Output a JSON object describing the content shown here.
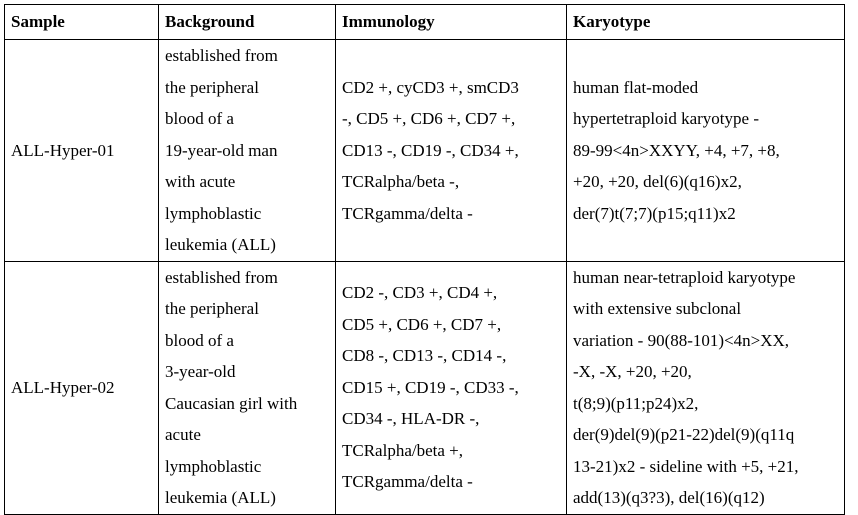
{
  "table": {
    "headers": [
      "Sample",
      "Background",
      "Immunology",
      "Karyotype"
    ],
    "rows": [
      {
        "sample": "ALL-Hyper-01",
        "background": [
          "established from",
          "the peripheral",
          "blood of a",
          "19-year-old man",
          "with acute",
          "lymphoblastic",
          "leukemia (ALL)"
        ],
        "immunology": [
          "CD2 +, cyCD3 +, smCD3",
          "-, CD5 +, CD6 +, CD7 +,",
          "CD13 -, CD19 -, CD34 +,",
          "TCRalpha/beta -,",
          "TCRgamma/delta -"
        ],
        "karyotype": [
          "human flat-moded",
          "hypertetraploid karyotype -",
          "89-99<4n>XXYY, +4, +7, +8,",
          "+20, +20, del(6)(q16)x2,",
          "der(7)t(7;7)(p15;q11)x2"
        ]
      },
      {
        "sample": "ALL-Hyper-02",
        "background": [
          "established from",
          "the peripheral",
          "blood of a",
          "3-year-old",
          "Caucasian girl with",
          "acute",
          "lymphoblastic",
          "leukemia (ALL)"
        ],
        "immunology": [
          "CD2 -, CD3 +, CD4 +,",
          "CD5 +, CD6 +, CD7 +,",
          "CD8 -, CD13 -, CD14 -,",
          "CD15 +, CD19 -, CD33 -,",
          "CD34 -, HLA-DR -,",
          "TCRalpha/beta +,",
          "TCRgamma/delta -"
        ],
        "karyotype": [
          "human near-tetraploid karyotype",
          "with extensive subclonal",
          "variation - 90(88-101)<4n>XX,",
          "-X, -X, +20, +20,",
          "t(8;9)(p11;p24)x2,",
          "der(9)del(9)(p21-22)del(9)(q11q",
          "13-21)x2 - sideline with +5, +21,",
          "add(13)(q3?3), del(16)(q12)"
        ]
      }
    ]
  }
}
